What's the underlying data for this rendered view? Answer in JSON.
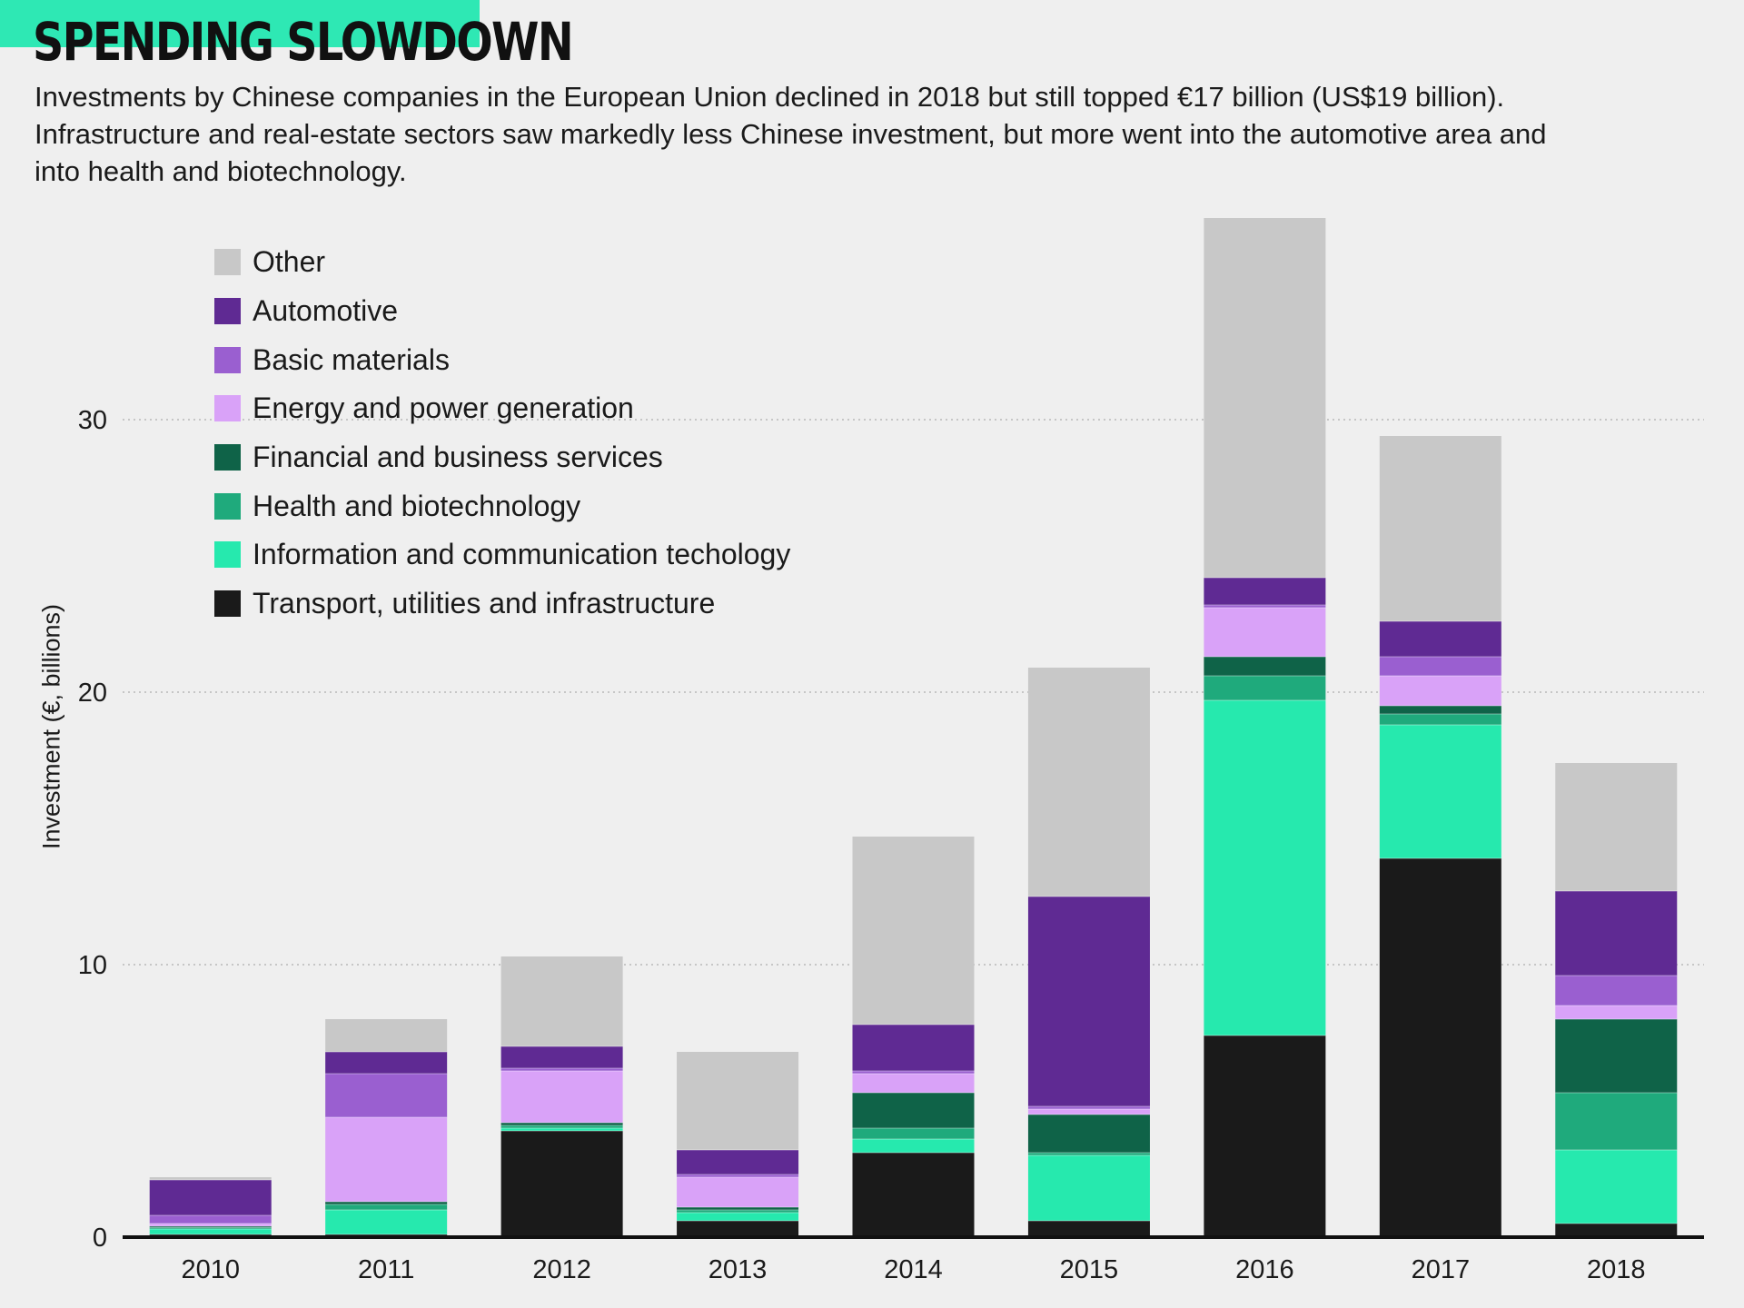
{
  "header": {
    "title": "SPENDING SLOWDOWN",
    "subtitle": "Investments by Chinese companies in the European Union declined in 2018 but still topped €17 billion (US$19 billion). Infrastructure and real-estate sectors saw markedly less Chinese investment, but more went into the automotive area and into health and biotechnology."
  },
  "colors": {
    "background": "#efefef",
    "accent": "#2ee8b4"
  },
  "legend_items": [
    {
      "label": "Other",
      "color": "#c8c8c8"
    },
    {
      "label": "Automotive",
      "color": "#5f2a93"
    },
    {
      "label": "Basic materials",
      "color": "#9a5fd0"
    },
    {
      "label": "Energy and power generation",
      "color": "#d9a2f8"
    },
    {
      "label": "Financial and business services",
      "color": "#0f6348"
    },
    {
      "label": "Health and biotechnology",
      "color": "#1faa7c"
    },
    {
      "label": "Information and communication techology",
      "color": "#26e9ae"
    },
    {
      "label": "Transport, utilities and infrastructure",
      "color": "#1a1a1a"
    }
  ],
  "chart_data": {
    "type": "bar",
    "stacked": true,
    "title": "SPENDING SLOWDOWN",
    "xlabel": "",
    "ylabel": "Investment (€, billions)",
    "ylim": [
      0,
      37.5
    ],
    "yticks": [
      0,
      10,
      20,
      30
    ],
    "grid": "horizontal dotted",
    "legend_position": "top-left",
    "categories": [
      "2010",
      "2011",
      "2012",
      "2013",
      "2014",
      "2015",
      "2016",
      "2017",
      "2018"
    ],
    "series": [
      {
        "name": "Transport, utilities and infrastructure",
        "color": "#1a1a1a",
        "values": [
          0.1,
          0.1,
          3.9,
          0.6,
          3.1,
          0.6,
          7.4,
          13.9,
          0.5
        ]
      },
      {
        "name": "Information and communication techology",
        "color": "#26e9ae",
        "values": [
          0.2,
          0.9,
          0.1,
          0.3,
          0.5,
          2.4,
          12.3,
          4.9,
          2.7
        ]
      },
      {
        "name": "Health and biotechnology",
        "color": "#1faa7c",
        "values": [
          0.05,
          0.2,
          0.1,
          0.1,
          0.4,
          0.1,
          0.9,
          0.4,
          2.1
        ]
      },
      {
        "name": "Financial and business services",
        "color": "#0f6348",
        "values": [
          0.05,
          0.1,
          0.1,
          0.1,
          1.3,
          1.4,
          0.7,
          0.3,
          2.7
        ]
      },
      {
        "name": "Energy and power generation",
        "color": "#d9a2f8",
        "values": [
          0.1,
          3.1,
          1.9,
          1.1,
          0.7,
          0.2,
          1.8,
          1.1,
          0.5
        ]
      },
      {
        "name": "Basic materials",
        "color": "#9a5fd0",
        "values": [
          0.3,
          1.6,
          0.1,
          0.1,
          0.1,
          0.1,
          0.1,
          0.7,
          1.1
        ]
      },
      {
        "name": "Automotive",
        "color": "#5f2a93",
        "values": [
          1.3,
          0.8,
          0.8,
          0.9,
          1.7,
          7.7,
          1.0,
          1.3,
          3.1
        ]
      },
      {
        "name": "Other",
        "color": "#c8c8c8",
        "values": [
          0.1,
          1.2,
          3.3,
          3.6,
          6.9,
          8.4,
          13.2,
          6.8,
          4.7
        ]
      }
    ]
  }
}
